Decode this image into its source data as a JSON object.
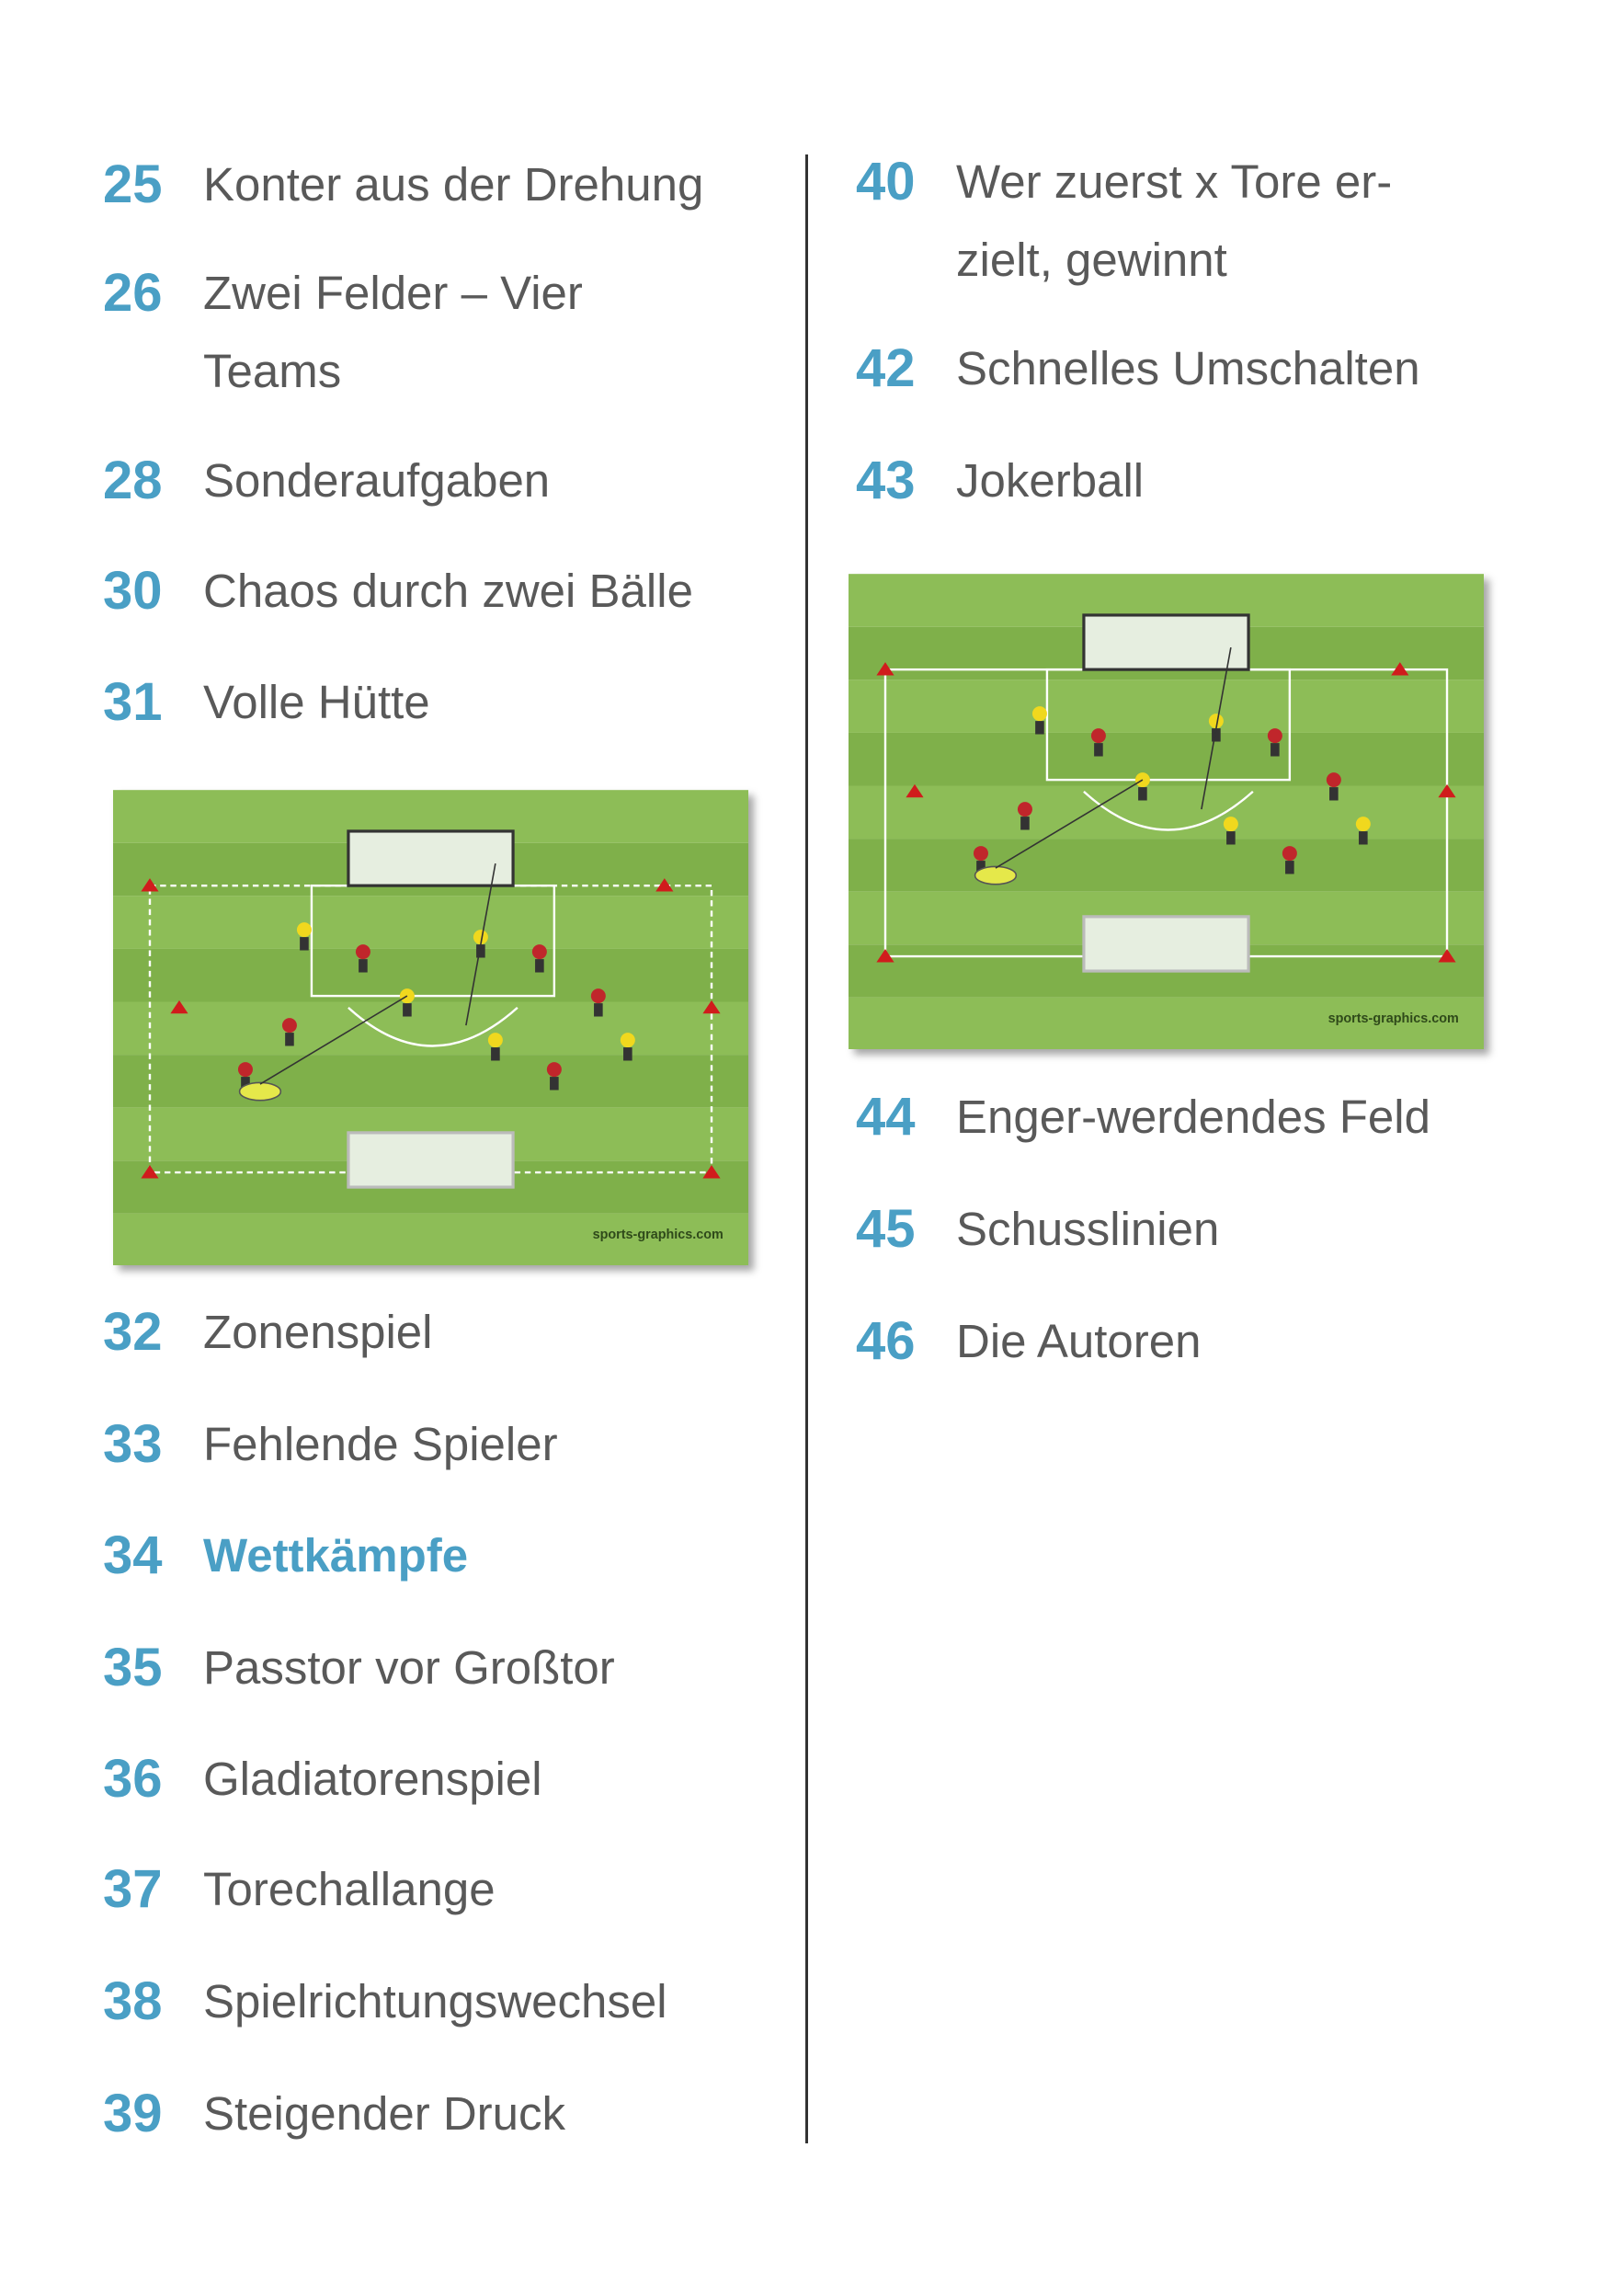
{
  "left_column": {
    "entries": [
      {
        "number": "25",
        "title_lines": [
          "Konter aus der Drehung"
        ]
      },
      {
        "number": "26",
        "title_lines": [
          "Zwei Felder – Vier",
          "Teams"
        ]
      },
      {
        "number": "28",
        "title_lines": [
          "Sonderaufgaben"
        ]
      },
      {
        "number": "30",
        "title_lines": [
          "Chaos durch zwei Bälle"
        ]
      },
      {
        "number": "31",
        "title_lines": [
          "Volle Hütte"
        ]
      },
      {
        "number": "32",
        "title_lines": [
          "Zonenspiel"
        ]
      },
      {
        "number": "33",
        "title_lines": [
          "Fehlende Spieler"
        ]
      },
      {
        "number": "34",
        "title_lines": [
          "Wettkämpfe"
        ],
        "highlighted": true
      },
      {
        "number": "35",
        "title_lines": [
          "Passtor vor Großtor"
        ]
      },
      {
        "number": "36",
        "title_lines": [
          "Gladiatorenspiel"
        ]
      },
      {
        "number": "37",
        "title_lines": [
          "Torechallange"
        ]
      },
      {
        "number": "38",
        "title_lines": [
          "Spielrichtungswechsel"
        ]
      },
      {
        "number": "39",
        "title_lines": [
          "Steigender Druck"
        ]
      }
    ],
    "image": {
      "watermark": "sports-graphics.com"
    }
  },
  "right_column": {
    "entries": [
      {
        "number": "40",
        "title_lines": [
          "Wer zuerst x Tore er-",
          "zielt, gewinnt"
        ]
      },
      {
        "number": "42",
        "title_lines": [
          "Schnelles Umschalten"
        ]
      },
      {
        "number": "43",
        "title_lines": [
          "Jokerball"
        ]
      },
      {
        "number": "44",
        "title_lines": [
          "Enger-werdendes Feld"
        ]
      },
      {
        "number": "45",
        "title_lines": [
          "Schusslinien"
        ]
      },
      {
        "number": "46",
        "title_lines": [
          "Die Autoren"
        ]
      }
    ],
    "image": {
      "watermark": "sports-graphics.com"
    }
  }
}
